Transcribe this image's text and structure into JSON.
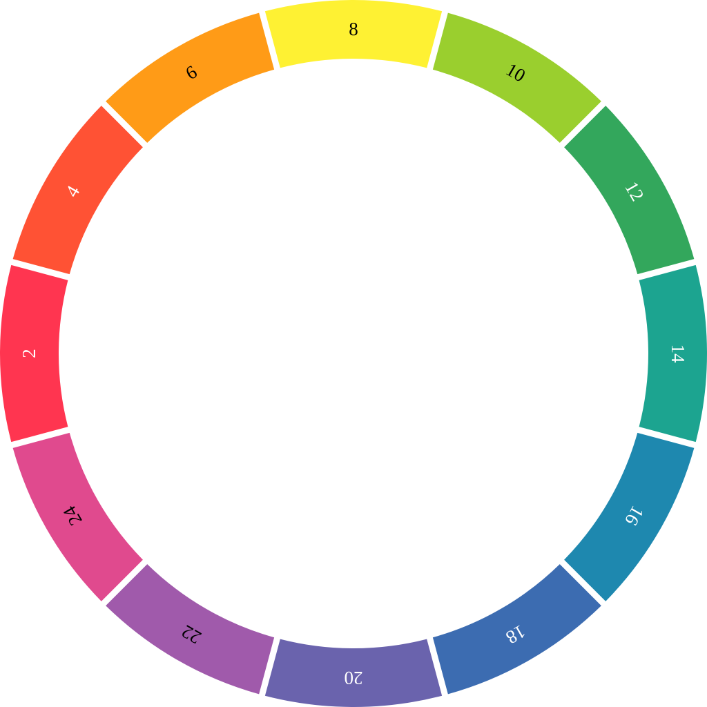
{
  "segments": [
    {
      "label": "8",
      "color": "#FEF133",
      "text_color": "#000000"
    },
    {
      "label": "10",
      "color": "#9ACF2E",
      "text_color": "#000000"
    },
    {
      "label": "12",
      "color": "#33A75C",
      "text_color": "#ffffff"
    },
    {
      "label": "14",
      "color": "#1CA490",
      "text_color": "#ffffff"
    },
    {
      "label": "16",
      "color": "#1E88AF",
      "text_color": "#ffffff"
    },
    {
      "label": "18",
      "color": "#3C6CB1",
      "text_color": "#ffffff"
    },
    {
      "label": "20",
      "color": "#6A63AD",
      "text_color": "#ffffff"
    },
    {
      "label": "22",
      "color": "#A05AAB",
      "text_color": "#000000"
    },
    {
      "label": "24",
      "color": "#E04A8E",
      "text_color": "#000000"
    },
    {
      "label": "2",
      "color": "#FF3550",
      "text_color": "#ffffff"
    },
    {
      "label": "4",
      "color": "#FF5234",
      "text_color": "#ffffff"
    },
    {
      "label": "6",
      "color": "#FF9B17",
      "text_color": "#000000"
    }
  ]
}
